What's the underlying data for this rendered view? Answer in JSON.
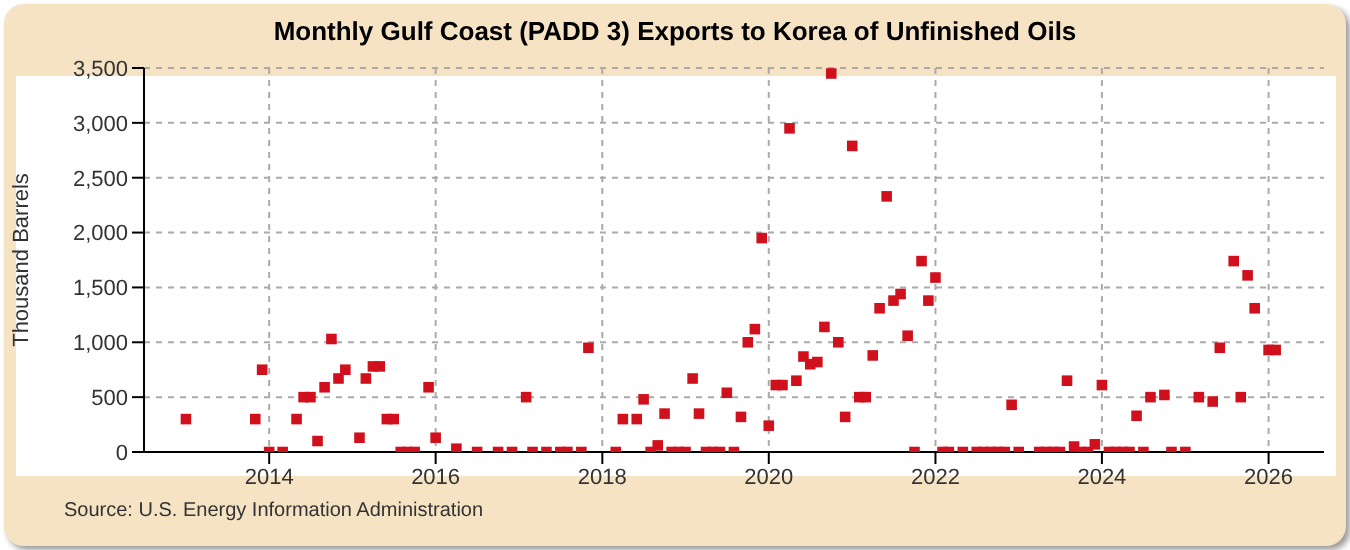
{
  "chart_data": {
    "type": "scatter",
    "title": "Monthly Gulf Coast (PADD 3) Exports to Korea of Unfinished Oils",
    "ylabel": "Thousand Barrels",
    "annotations": [
      "Source: U.S. Energy Information Administration"
    ],
    "x": [
      "2013-01",
      "2013-11",
      "2013-12",
      "2014-01",
      "2014-03",
      "2014-05",
      "2014-06",
      "2014-07",
      "2014-08",
      "2014-09",
      "2014-10",
      "2014-11",
      "2014-12",
      "2015-02",
      "2015-03",
      "2015-04",
      "2015-05",
      "2015-06",
      "2015-07",
      "2015-08",
      "2015-09",
      "2015-10",
      "2015-12",
      "2016-01",
      "2016-04",
      "2016-07",
      "2016-10",
      "2016-12",
      "2017-02",
      "2017-03",
      "2017-05",
      "2017-07",
      "2017-08",
      "2017-10",
      "2017-11",
      "2018-03",
      "2018-04",
      "2018-06",
      "2018-07",
      "2018-08",
      "2018-09",
      "2018-10",
      "2018-11",
      "2018-12",
      "2019-01",
      "2019-02",
      "2019-03",
      "2019-04",
      "2019-05",
      "2019-06",
      "2019-07",
      "2019-08",
      "2019-09",
      "2019-10",
      "2019-11",
      "2019-12",
      "2020-01",
      "2020-02",
      "2020-03",
      "2020-04",
      "2020-05",
      "2020-06",
      "2020-07",
      "2020-08",
      "2020-09",
      "2020-10",
      "2020-11",
      "2020-12",
      "2021-01",
      "2021-02",
      "2021-03",
      "2021-04",
      "2021-05",
      "2021-06",
      "2021-07",
      "2021-08",
      "2021-09",
      "2021-10",
      "2021-11",
      "2021-12",
      "2022-01",
      "2022-02",
      "2022-03",
      "2022-05",
      "2022-07",
      "2022-08",
      "2022-09",
      "2022-10",
      "2022-11",
      "2022-12",
      "2023-01",
      "2023-04",
      "2023-05",
      "2023-06",
      "2023-07",
      "2023-08",
      "2023-09",
      "2023-10",
      "2023-11",
      "2023-12",
      "2024-01",
      "2024-02",
      "2024-03",
      "2024-04",
      "2024-05",
      "2024-06",
      "2024-07",
      "2024-08",
      "2024-10",
      "2024-11",
      "2025-01",
      "2025-03",
      "2025-05",
      "2025-06",
      "2025-08",
      "2025-09",
      "2025-10",
      "2025-11",
      "2026-01",
      "2026-02"
    ],
    "series": [
      {
        "color": "#d0101c",
        "values": [
          300,
          300,
          750,
          0,
          0,
          300,
          500,
          500,
          100,
          590,
          1030,
          670,
          750,
          130,
          670,
          780,
          780,
          300,
          300,
          0,
          0,
          0,
          590,
          130,
          30,
          0,
          0,
          0,
          500,
          0,
          0,
          0,
          0,
          0,
          950,
          0,
          300,
          300,
          480,
          0,
          60,
          350,
          0,
          0,
          0,
          670,
          350,
          0,
          0,
          0,
          540,
          0,
          320,
          1000,
          1120,
          1950,
          240,
          610,
          610,
          2950,
          650,
          870,
          800,
          820,
          1140,
          3450,
          1000,
          320,
          2790,
          500,
          500,
          880,
          1310,
          2330,
          1380,
          1440,
          1060,
          0,
          1740,
          1380,
          1590,
          0,
          0,
          0,
          0,
          0,
          0,
          0,
          0,
          430,
          0,
          0,
          0,
          0,
          0,
          650,
          50,
          0,
          0,
          70,
          610,
          0,
          0,
          0,
          0,
          330,
          0,
          500,
          520,
          0,
          0,
          500,
          460,
          950,
          1740,
          500,
          1610,
          1310,
          930,
          930
        ]
      }
    ],
    "xlim": [
      "2012-07",
      "2026-09"
    ],
    "xticks": [
      "2014",
      "2016",
      "2018",
      "2020",
      "2022",
      "2024",
      "2026"
    ],
    "ylim": [
      0,
      3500
    ],
    "yticks": [
      {
        "value": 0,
        "label": "0"
      },
      {
        "value": 500,
        "label": "500"
      },
      {
        "value": 1000,
        "label": "1,000"
      },
      {
        "value": 1500,
        "label": "1,500"
      },
      {
        "value": 2000,
        "label": "2,000"
      },
      {
        "value": 2500,
        "label": "2,500"
      },
      {
        "value": 3000,
        "label": "3,000"
      },
      {
        "value": 3500,
        "label": "3,500"
      }
    ],
    "grid": true,
    "marker": "square",
    "legend": false
  }
}
